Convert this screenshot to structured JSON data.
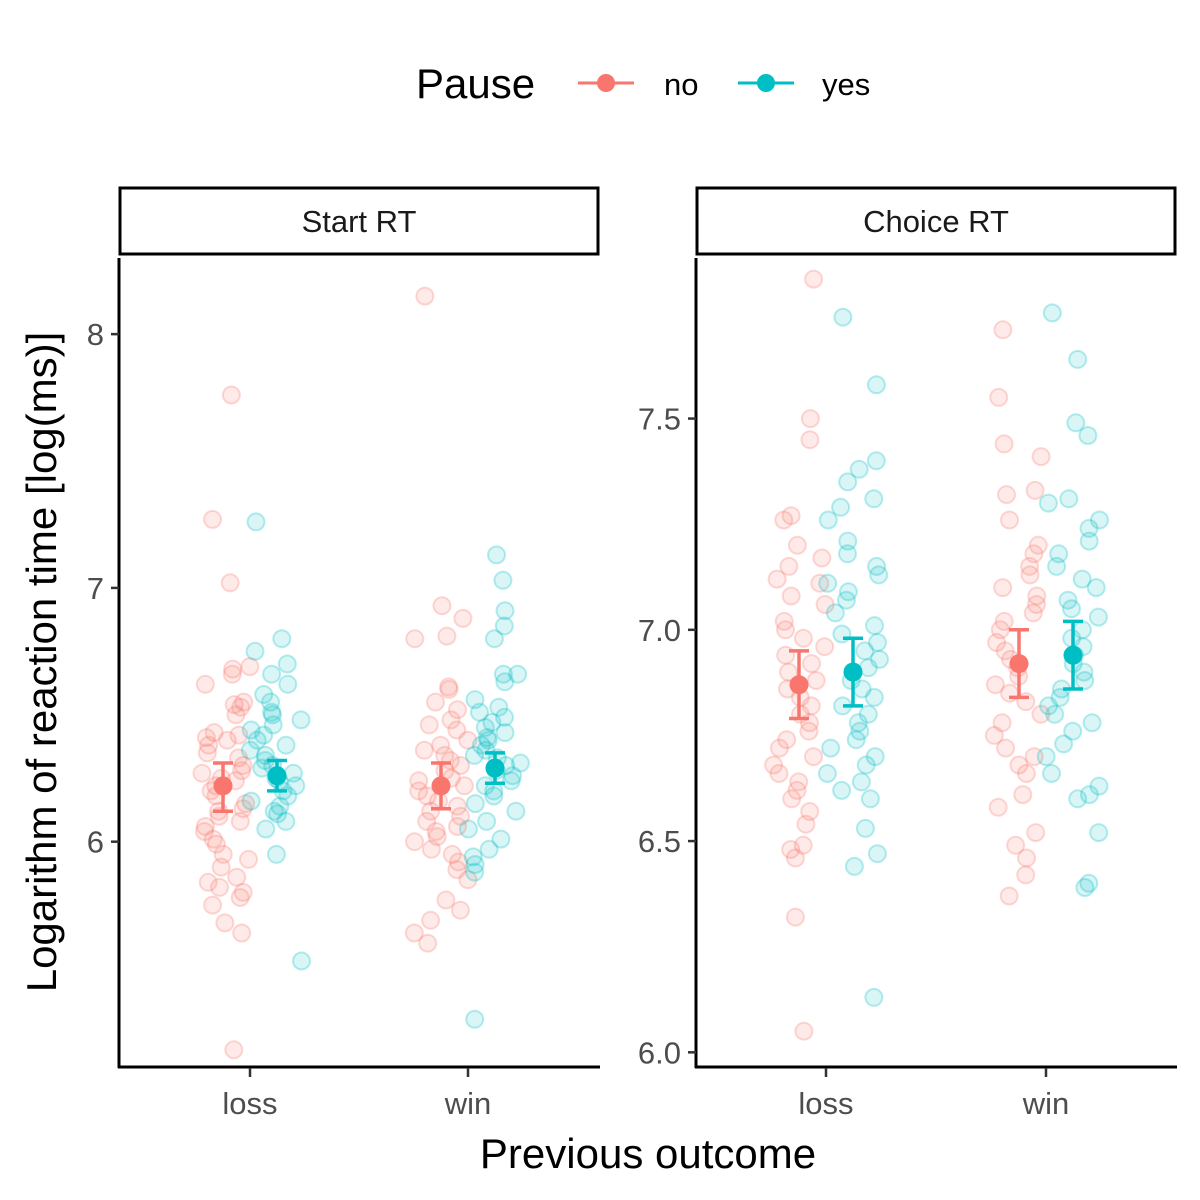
{
  "chart_data": {
    "type": "scatter",
    "legend": {
      "title": "Pause",
      "position": "top",
      "entries": [
        {
          "label": "no",
          "color": "#F8766D"
        },
        {
          "label": "yes",
          "color": "#00BFC4"
        }
      ]
    },
    "xlabel": "Previous outcome",
    "ylabel": "Logarithm of reaction time [log(ms)]",
    "categories": [
      "loss",
      "win"
    ],
    "grid": false,
    "panels": [
      {
        "title": "Start RT",
        "ylim": [
          5.12,
          8.3
        ],
        "yticks": [
          6,
          7,
          8
        ],
        "ytick_labels": [
          "6",
          "7",
          "8"
        ],
        "summary": [
          {
            "x": "loss",
            "group": "no",
            "mean": 6.22,
            "lower": 6.12,
            "upper": 6.31
          },
          {
            "x": "loss",
            "group": "yes",
            "mean": 6.26,
            "lower": 6.2,
            "upper": 6.32
          },
          {
            "x": "win",
            "group": "no",
            "mean": 6.22,
            "lower": 6.13,
            "upper": 6.31
          },
          {
            "x": "win",
            "group": "yes",
            "mean": 6.29,
            "lower": 6.23,
            "upper": 6.35
          }
        ],
        "points": [
          {
            "x": "loss",
            "group": "no",
            "values": [
              7.76,
              7.27,
              7.02,
              6.69,
              6.68,
              6.66,
              6.62,
              6.55,
              6.54,
              6.53,
              6.5,
              6.43,
              6.42,
              6.41,
              6.4,
              6.38,
              6.35,
              6.33,
              6.3,
              6.28,
              6.27,
              6.25,
              6.24,
              6.22,
              6.2,
              6.18,
              6.15,
              6.13,
              6.12,
              6.1,
              6.08,
              6.06,
              6.04,
              6.01,
              5.99,
              5.95,
              5.93,
              5.9,
              5.86,
              5.84,
              5.82,
              5.8,
              5.78,
              5.75,
              5.68,
              5.64,
              5.18
            ]
          },
          {
            "x": "loss",
            "group": "yes",
            "values": [
              7.26,
              6.8,
              6.75,
              6.7,
              6.66,
              6.62,
              6.58,
              6.55,
              6.51,
              6.5,
              6.48,
              6.46,
              6.44,
              6.42,
              6.4,
              6.38,
              6.36,
              6.34,
              6.32,
              6.3,
              6.29,
              6.27,
              6.25,
              6.24,
              6.22,
              6.2,
              6.18,
              6.16,
              6.14,
              6.12,
              6.11,
              6.08,
              6.05,
              5.95,
              5.53
            ]
          },
          {
            "x": "win",
            "group": "no",
            "values": [
              8.15,
              6.93,
              6.88,
              6.81,
              6.8,
              6.61,
              6.6,
              6.55,
              6.52,
              6.48,
              6.46,
              6.44,
              6.4,
              6.38,
              6.36,
              6.34,
              6.32,
              6.3,
              6.28,
              6.25,
              6.24,
              6.22,
              6.2,
              6.18,
              6.16,
              6.14,
              6.12,
              6.1,
              6.08,
              6.06,
              6.04,
              6.02,
              6.0,
              5.97,
              5.95,
              5.92,
              5.89,
              5.85,
              5.77,
              5.73,
              5.69,
              5.64,
              5.6
            ]
          },
          {
            "x": "win",
            "group": "yes",
            "values": [
              7.13,
              7.03,
              6.91,
              6.85,
              6.8,
              6.66,
              6.66,
              6.63,
              6.56,
              6.53,
              6.51,
              6.49,
              6.47,
              6.45,
              6.43,
              6.41,
              6.4,
              6.38,
              6.36,
              6.34,
              6.33,
              6.31,
              6.3,
              6.28,
              6.26,
              6.24,
              6.22,
              6.2,
              6.18,
              6.15,
              6.12,
              6.08,
              6.05,
              6.01,
              5.97,
              5.94,
              5.91,
              5.88,
              5.3
            ]
          }
        ]
      },
      {
        "title": "Choice RT",
        "ylim": [
          5.97,
          7.88
        ],
        "yticks": [
          6.0,
          6.5,
          7.0,
          7.5
        ],
        "ytick_labels": [
          "6.0",
          "6.5",
          "7.0",
          "7.5"
        ],
        "summary": [
          {
            "x": "loss",
            "group": "no",
            "mean": 6.87,
            "lower": 6.79,
            "upper": 6.95
          },
          {
            "x": "loss",
            "group": "yes",
            "mean": 6.9,
            "lower": 6.82,
            "upper": 6.98
          },
          {
            "x": "win",
            "group": "no",
            "mean": 6.92,
            "lower": 6.84,
            "upper": 7.0
          },
          {
            "x": "win",
            "group": "yes",
            "mean": 6.94,
            "lower": 6.86,
            "upper": 7.02
          }
        ],
        "points": [
          {
            "x": "loss",
            "group": "no",
            "values": [
              7.83,
              7.5,
              7.45,
              7.27,
              7.26,
              7.2,
              7.17,
              7.15,
              7.12,
              7.11,
              7.08,
              7.06,
              7.02,
              7.0,
              6.98,
              6.96,
              6.94,
              6.92,
              6.9,
              6.88,
              6.86,
              6.84,
              6.82,
              6.8,
              6.78,
              6.76,
              6.74,
              6.72,
              6.7,
              6.68,
              6.66,
              6.64,
              6.62,
              6.6,
              6.57,
              6.54,
              6.49,
              6.48,
              6.46,
              6.32,
              6.05
            ]
          },
          {
            "x": "loss",
            "group": "yes",
            "values": [
              7.74,
              7.58,
              7.4,
              7.38,
              7.35,
              7.31,
              7.29,
              7.26,
              7.21,
              7.18,
              7.15,
              7.13,
              7.11,
              7.09,
              7.07,
              7.04,
              7.01,
              6.99,
              6.97,
              6.95,
              6.93,
              6.91,
              6.88,
              6.86,
              6.84,
              6.82,
              6.8,
              6.78,
              6.76,
              6.74,
              6.72,
              6.7,
              6.68,
              6.66,
              6.64,
              6.62,
              6.6,
              6.53,
              6.47,
              6.44,
              6.13
            ]
          },
          {
            "x": "win",
            "group": "no",
            "values": [
              7.71,
              7.55,
              7.44,
              7.41,
              7.33,
              7.32,
              7.26,
              7.2,
              7.18,
              7.15,
              7.13,
              7.1,
              7.08,
              7.06,
              7.04,
              7.02,
              7.0,
              6.97,
              6.95,
              6.93,
              6.91,
              6.89,
              6.87,
              6.85,
              6.83,
              6.8,
              6.78,
              6.75,
              6.72,
              6.7,
              6.68,
              6.66,
              6.61,
              6.58,
              6.52,
              6.49,
              6.46,
              6.42,
              6.37
            ]
          },
          {
            "x": "win",
            "group": "yes",
            "values": [
              7.75,
              7.64,
              7.49,
              7.46,
              7.31,
              7.3,
              7.26,
              7.24,
              7.21,
              7.18,
              7.15,
              7.12,
              7.1,
              7.07,
              7.05,
              7.03,
              7.0,
              6.98,
              6.96,
              6.94,
              6.92,
              6.9,
              6.88,
              6.86,
              6.84,
              6.82,
              6.8,
              6.78,
              6.76,
              6.73,
              6.7,
              6.66,
              6.63,
              6.61,
              6.6,
              6.52,
              6.4,
              6.39
            ]
          }
        ]
      }
    ]
  }
}
